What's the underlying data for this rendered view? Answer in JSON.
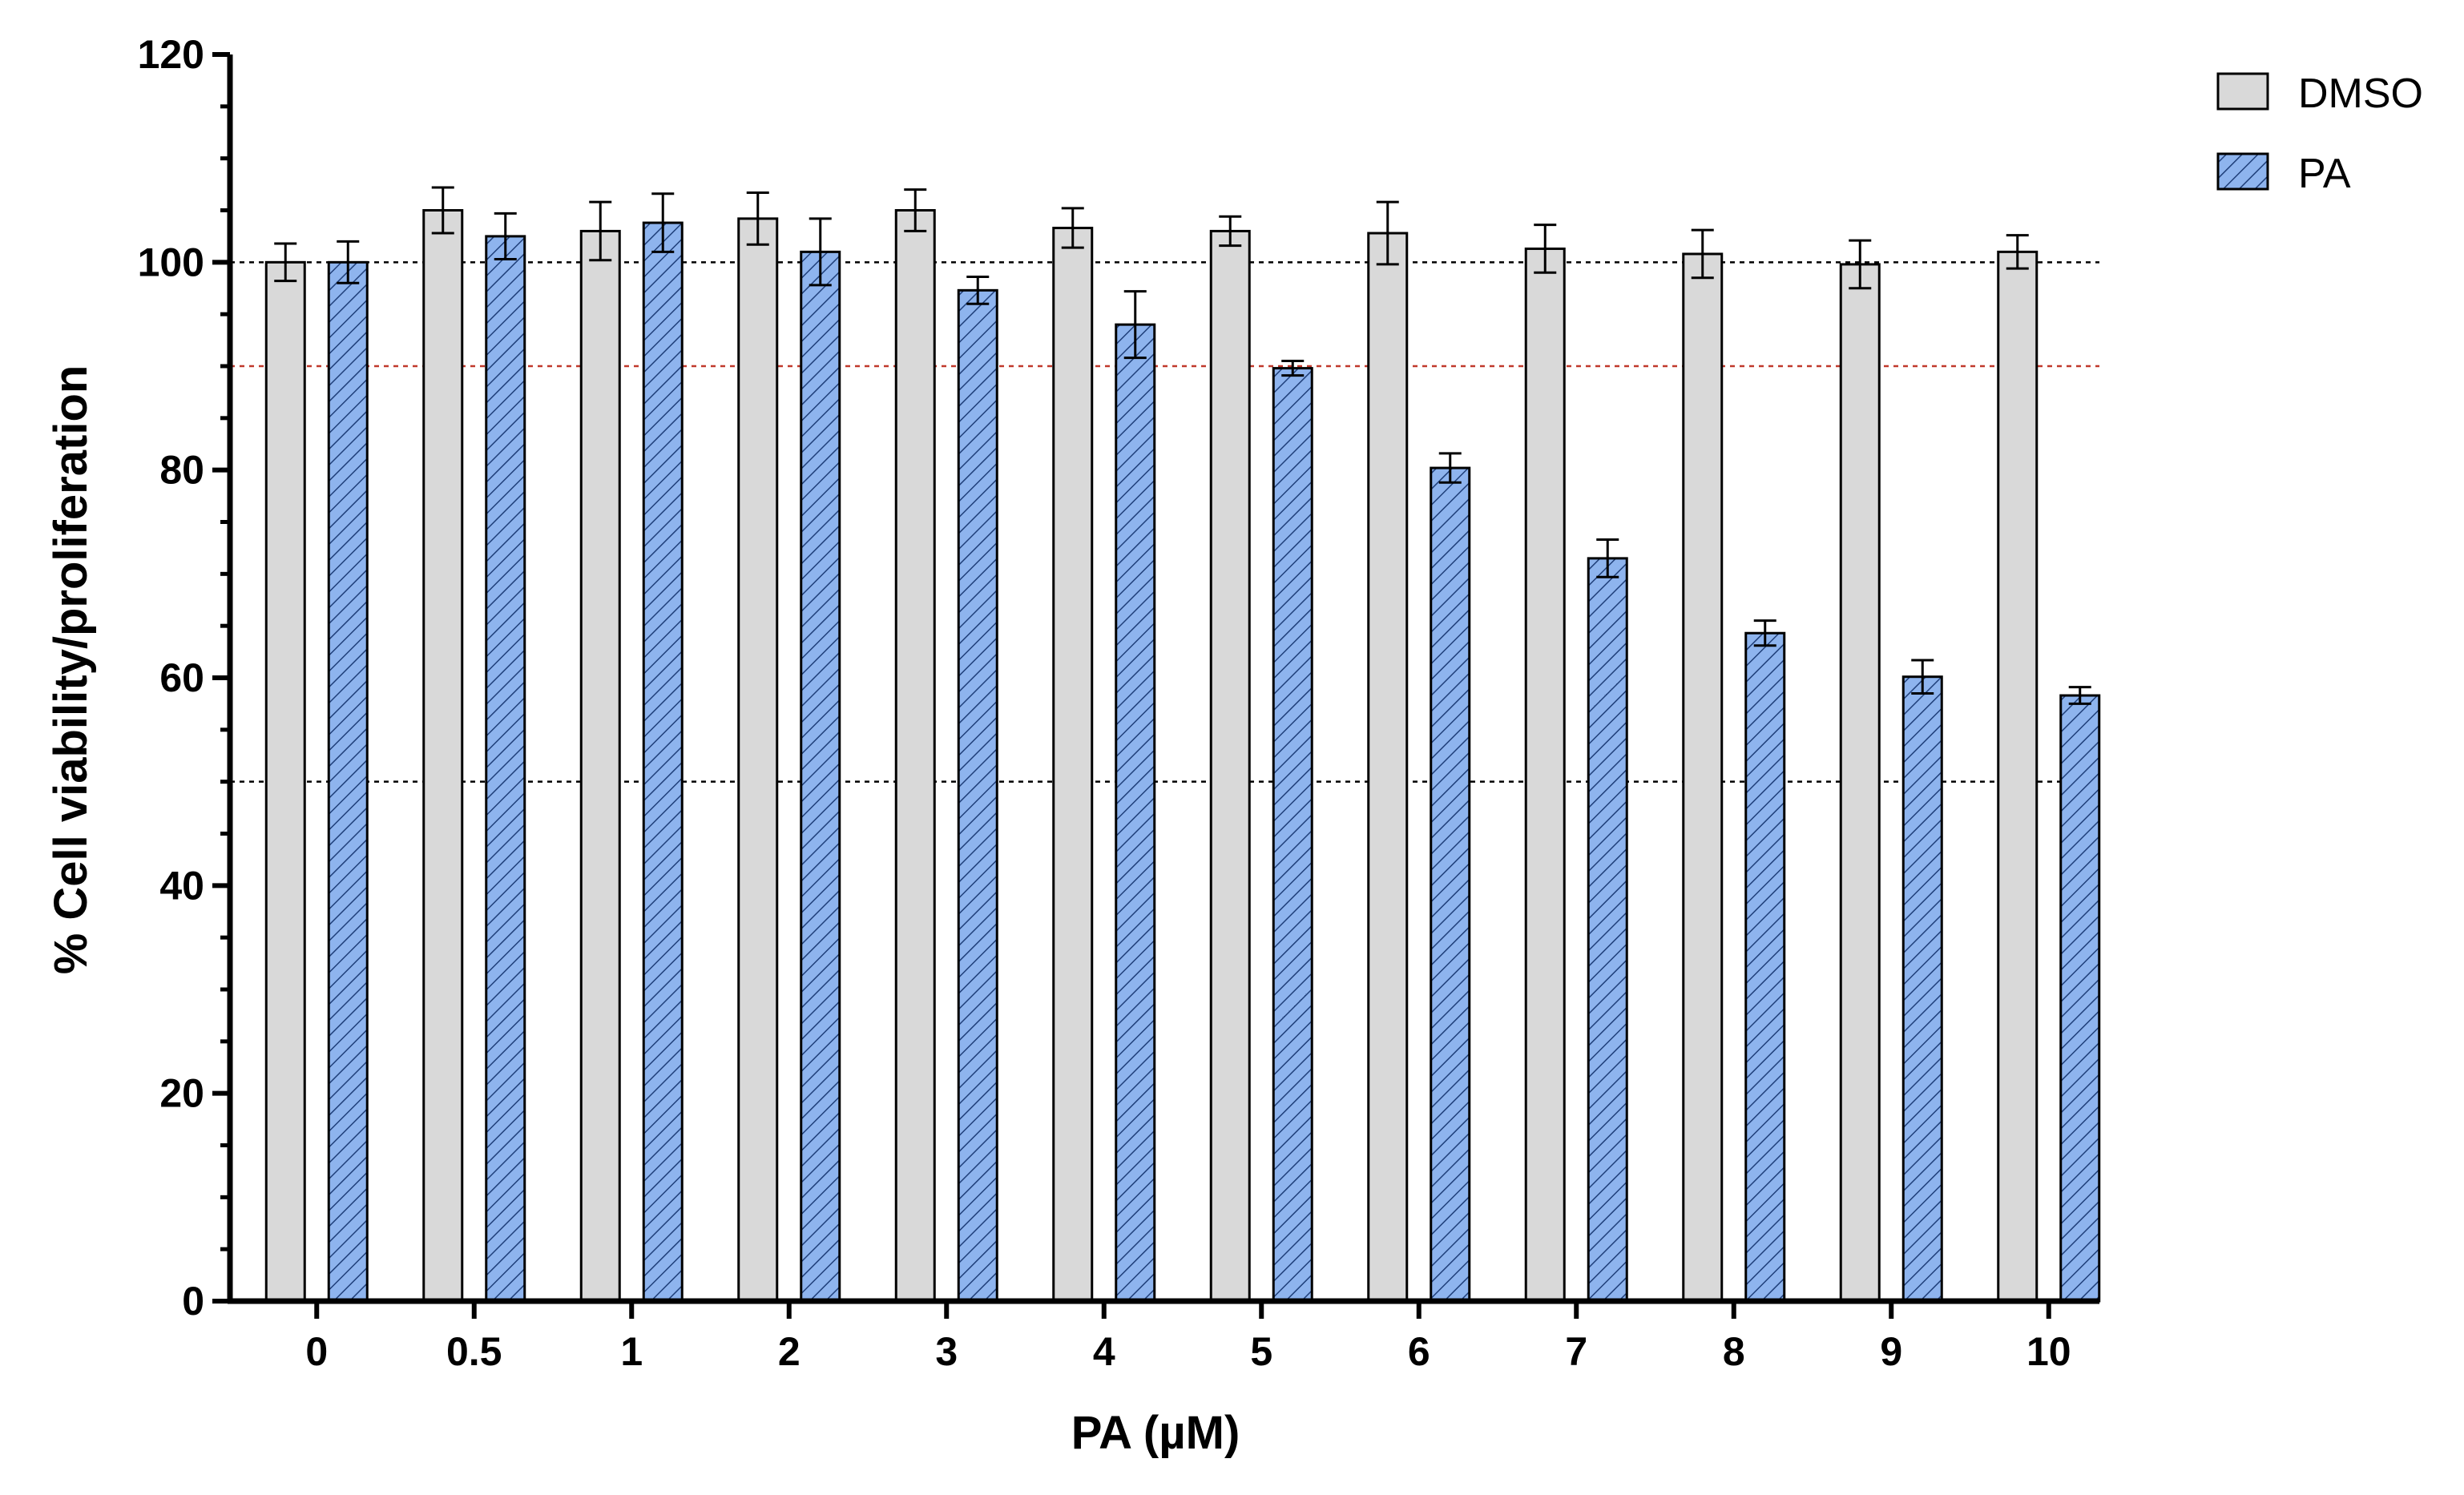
{
  "chart_data": {
    "type": "bar",
    "title": "",
    "xlabel": "PA (µM)",
    "ylabel": "% Cell viability/proliferation",
    "ylim": [
      0,
      120
    ],
    "yticks": [
      "0",
      "20",
      "40",
      "60",
      "80",
      "100",
      "120"
    ],
    "categories": [
      "0",
      "0.5",
      "1",
      "2",
      "3",
      "4",
      "5",
      "6",
      "7",
      "8",
      "9",
      "10"
    ],
    "series": [
      {
        "name": "DMSO",
        "color": "#d9d9d9",
        "pattern": "solid",
        "values": [
          100,
          105,
          103,
          104.2,
          105,
          103.3,
          103,
          102.8,
          101.3,
          100.8,
          99.8,
          101
        ],
        "errors": [
          1.8,
          2.2,
          2.8,
          2.5,
          2.0,
          1.9,
          1.4,
          3.0,
          2.3,
          2.3,
          2.3,
          1.6
        ]
      },
      {
        "name": "PA",
        "color": "#8eb4ee",
        "pattern": "diagonal-hatch",
        "values": [
          100,
          102.5,
          103.8,
          101,
          97.3,
          94,
          89.8,
          80.2,
          71.5,
          64.3,
          60.1,
          58.3
        ],
        "errors": [
          2.0,
          2.2,
          2.8,
          3.2,
          1.3,
          3.2,
          0.7,
          1.4,
          1.8,
          1.2,
          1.6,
          0.8
        ]
      }
    ],
    "reference_lines": [
      {
        "value": 100,
        "color": "#000000",
        "style": "dotted"
      },
      {
        "value": 90,
        "color": "#c0392b",
        "style": "dotted"
      },
      {
        "value": 50,
        "color": "#000000",
        "style": "dotted"
      }
    ],
    "legend": {
      "position": "top-right",
      "entries": [
        "DMSO",
        "PA"
      ]
    },
    "grid": false
  }
}
